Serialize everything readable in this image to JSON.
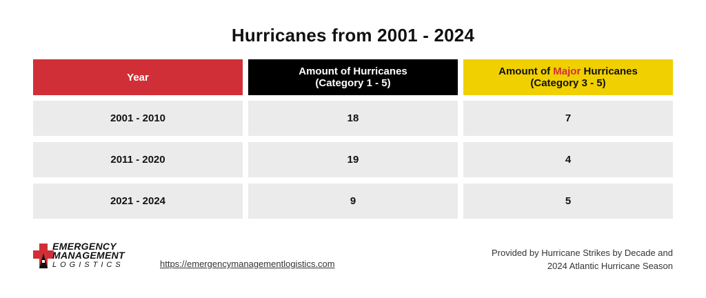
{
  "title": "Hurricanes from 2001 - 2024",
  "headers": {
    "col1": "Year",
    "col2_line1": "Amount of Hurricanes",
    "col2_line2": "(Category 1 - 5)",
    "col3_prefix": "Amount of ",
    "col3_highlight": "Major",
    "col3_suffix": " Hurricanes",
    "col3_line2": "(Category 3 - 5)"
  },
  "colors": {
    "year_header": "#d12f37",
    "hurricanes_header": "#000000",
    "major_header": "#f0d000",
    "major_word": "#d12f37",
    "row_fill": "#ebebeb"
  },
  "chart_data": {
    "type": "table",
    "title": "Hurricanes from 2001 - 2024",
    "columns": [
      "Year",
      "Amount of Hurricanes (Category 1 - 5)",
      "Amount of Major Hurricanes (Category 3 - 5)"
    ],
    "rows": [
      {
        "year": "2001 - 2010",
        "hurricanes": 18,
        "major": 7
      },
      {
        "year": "2011 - 2020",
        "hurricanes": 19,
        "major": 4
      },
      {
        "year": "2021 - 2024",
        "hurricanes": 9,
        "major": 5
      }
    ]
  },
  "footer": {
    "logo_line1": "EMERGENCY",
    "logo_line2": "MANAGEMENT",
    "logo_line3": "LOGISTICS",
    "url": "https://emergencymanagementlogistics.com",
    "credit_line1": "Provided by Hurricane Strikes by Decade and",
    "credit_line2": "2024 Atlantic Hurricane Season"
  }
}
